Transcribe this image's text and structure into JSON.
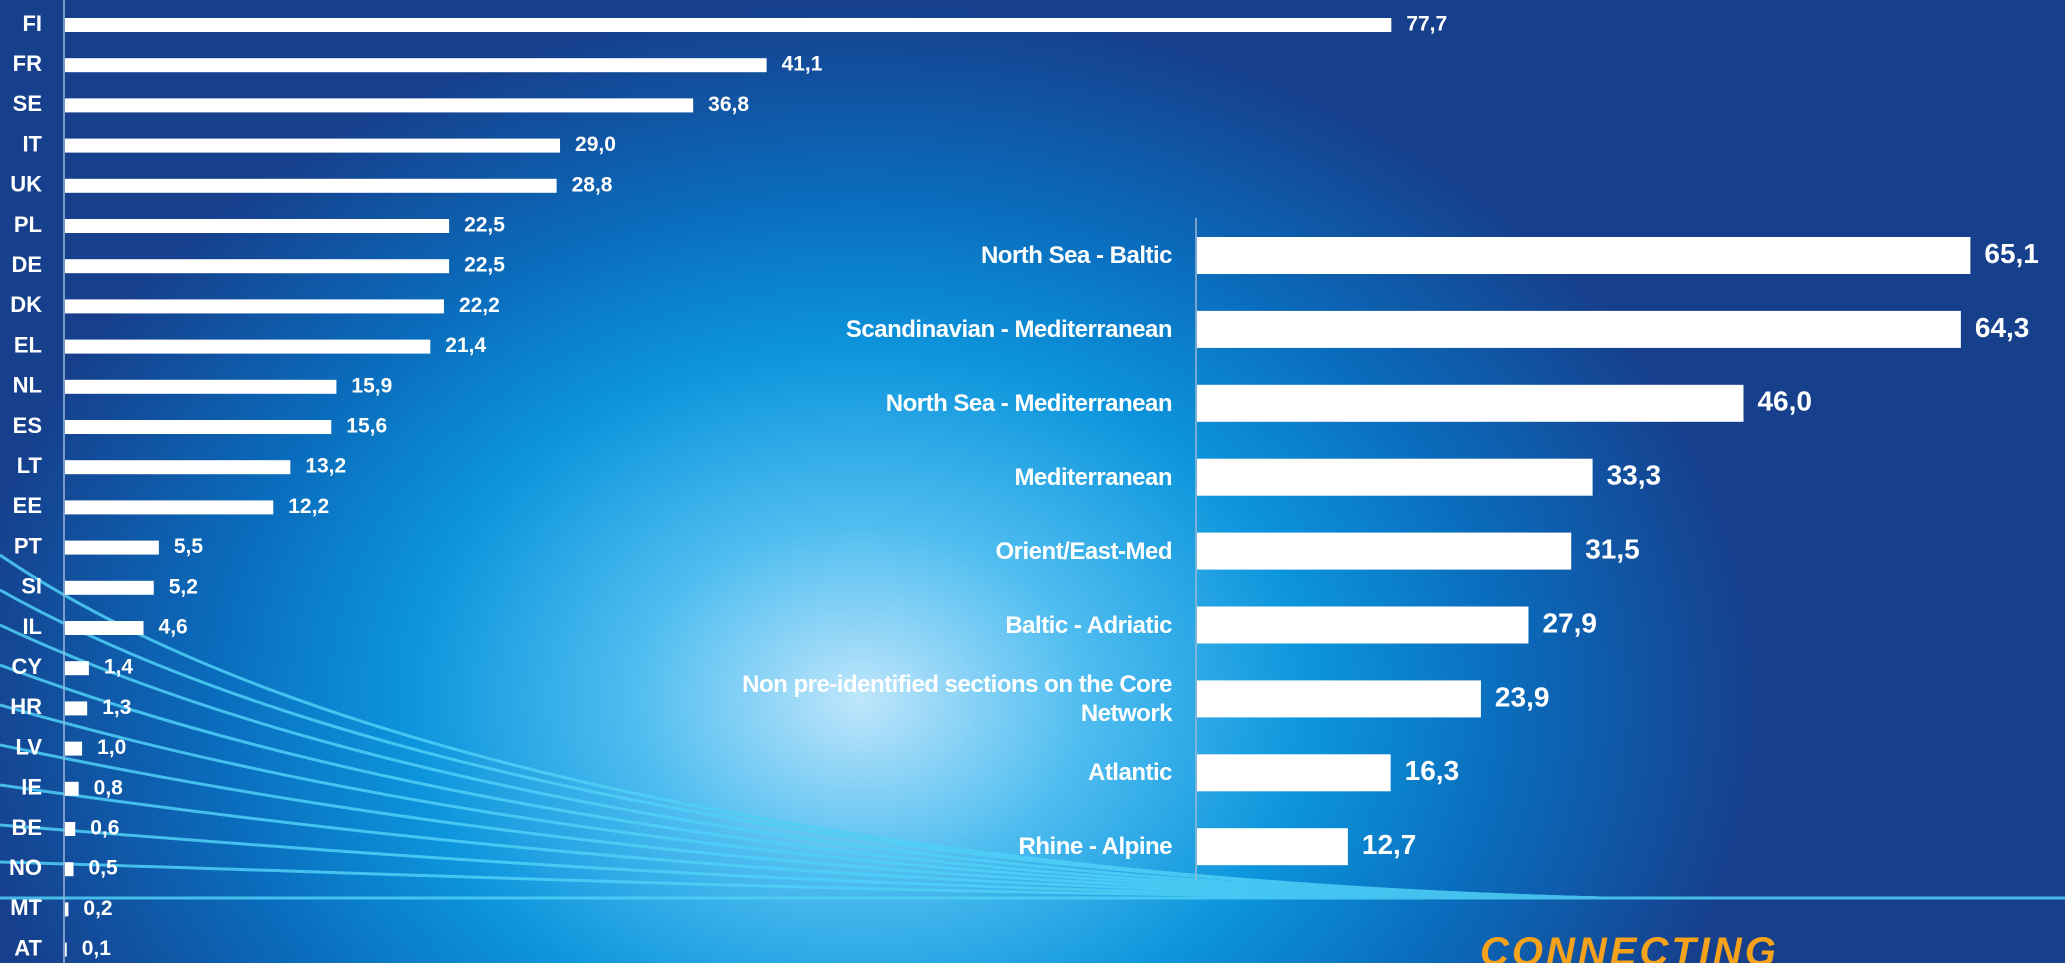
{
  "chart_data": [
    {
      "type": "bar",
      "horizontal": true,
      "color": "#ffffff",
      "categories": [
        "FI",
        "FR",
        "SE",
        "IT",
        "UK",
        "PL",
        "DE",
        "DK",
        "EL",
        "NL",
        "ES",
        "LT",
        "EE",
        "PT",
        "SI",
        "IL",
        "CY",
        "HR",
        "LV",
        "IE",
        "BE",
        "NO",
        "MT",
        "AT"
      ],
      "values": [
        77.7,
        41.1,
        36.8,
        29.0,
        28.8,
        22.5,
        22.5,
        22.2,
        21.4,
        15.9,
        15.6,
        13.2,
        12.2,
        5.5,
        5.2,
        4.6,
        1.4,
        1.3,
        1.0,
        0.8,
        0.6,
        0.5,
        0.2,
        0.1
      ],
      "value_labels": [
        "77,7",
        "41,1",
        "36,8",
        "29,0",
        "28,8",
        "22,5",
        "22,5",
        "22,2",
        "21,4",
        "15,9",
        "15,6",
        "13,2",
        "12,2",
        "5,5",
        "5,2",
        "4,6",
        "1,4",
        "1,3",
        "1,0",
        "0,8",
        "0,6",
        "0,5",
        "0,2",
        "0,1"
      ]
    },
    {
      "type": "bar",
      "horizontal": true,
      "color": "#ffffff",
      "categories": [
        "North Sea - Baltic",
        "Scandinavian - Mediterranean",
        "North Sea - Mediterranean",
        "Mediterranean",
        "Orient/East-Med",
        "Baltic - Adriatic",
        "Non pre-identified sections on the Core Network",
        "Atlantic",
        "Rhine - Alpine"
      ],
      "values": [
        65.1,
        64.3,
        46.0,
        33.3,
        31.5,
        27.9,
        23.9,
        16.3,
        12.7
      ],
      "value_labels": [
        "65,1",
        "64,3",
        "46,0",
        "33,3",
        "31,5",
        "27,9",
        "23,9",
        "16,3",
        "12,7"
      ]
    }
  ],
  "logo_text": "CONNECTING"
}
